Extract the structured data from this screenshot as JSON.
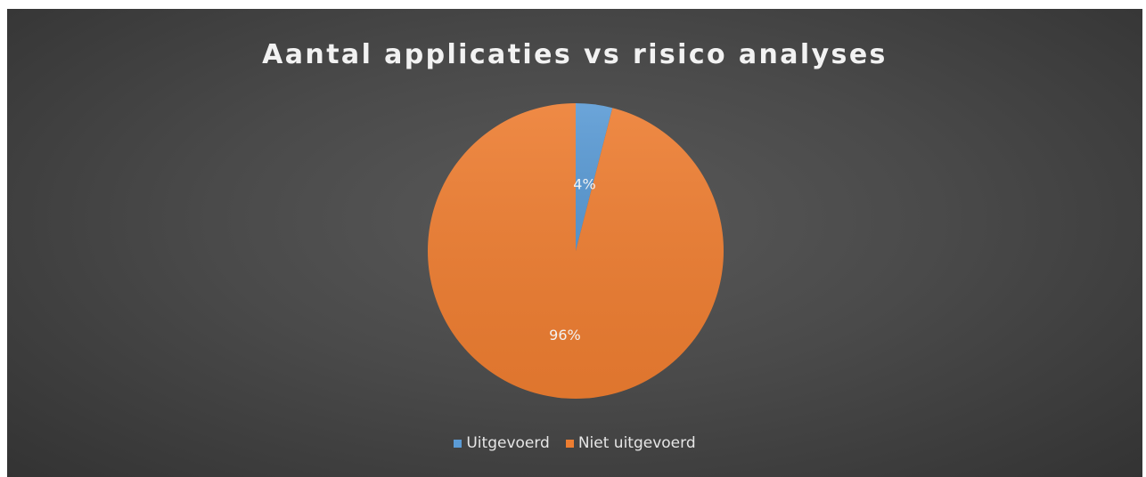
{
  "chart_data": {
    "type": "pie",
    "title": "Aantal applicaties vs risico analyses",
    "slices": [
      {
        "name": "Uitgevoerd",
        "value": 4,
        "label": "4%",
        "color": "#5b9bd5"
      },
      {
        "name": "Niet uitgevoerd",
        "value": 96,
        "label": "96%",
        "color": "#ed7d31"
      }
    ],
    "legend_position": "bottom",
    "background_color": "#404040"
  }
}
